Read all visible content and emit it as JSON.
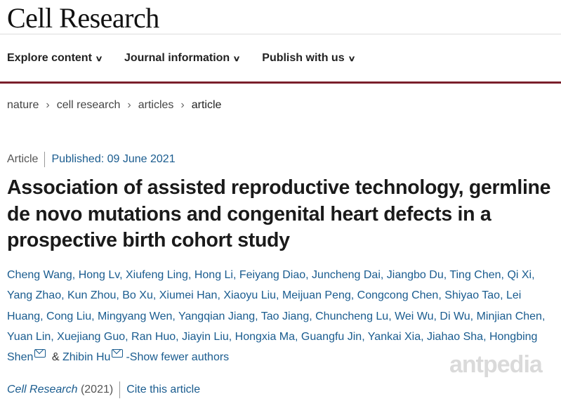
{
  "journal": {
    "name": "Cell Research"
  },
  "nav": [
    "Explore content",
    "Journal information",
    "Publish with us"
  ],
  "breadcrumbs": [
    "nature",
    "cell research",
    "articles",
    "article"
  ],
  "article": {
    "type": "Article",
    "published": "Published: 09 June 2021",
    "title": "Association of assisted reproductive technology, germline de novo mutations and congenital heart defects in a prospective birth cohort study",
    "authors_line1": "Cheng Wang, Hong Lv, Xiufeng Ling, Hong Li, Feiyang Diao, Juncheng Dai, Jiangbo Du, Ting Chen, Qi Xi,",
    "authors_line2": "Yang Zhao, Kun Zhou, Bo Xu, Xiumei Han, Xiaoyu Liu, Meijuan Peng, Congcong Chen, Shiyao Tao, Lei",
    "authors_line3": "Huang, Cong Liu, Mingyang Wen, Yangqian Jiang, Tao Jiang, Chuncheng Lu, Wei Wu, Di Wu, Minjian Chen,",
    "authors_line4": "Yuan Lin, Xuejiang Guo, Ran Huo, Jiayin Liu, Hongxia Ma, Guangfu Jin, Yankai Xia, Jiahao Sha, Hongbing",
    "author_shen": "Shen",
    "amp": "&",
    "author_hu": "Zhibin Hu",
    "show_fewer": "-Show fewer authors",
    "journal": "Cell Research",
    "year": "(2021)",
    "cite": "Cite this article"
  },
  "watermark": "antpedia"
}
